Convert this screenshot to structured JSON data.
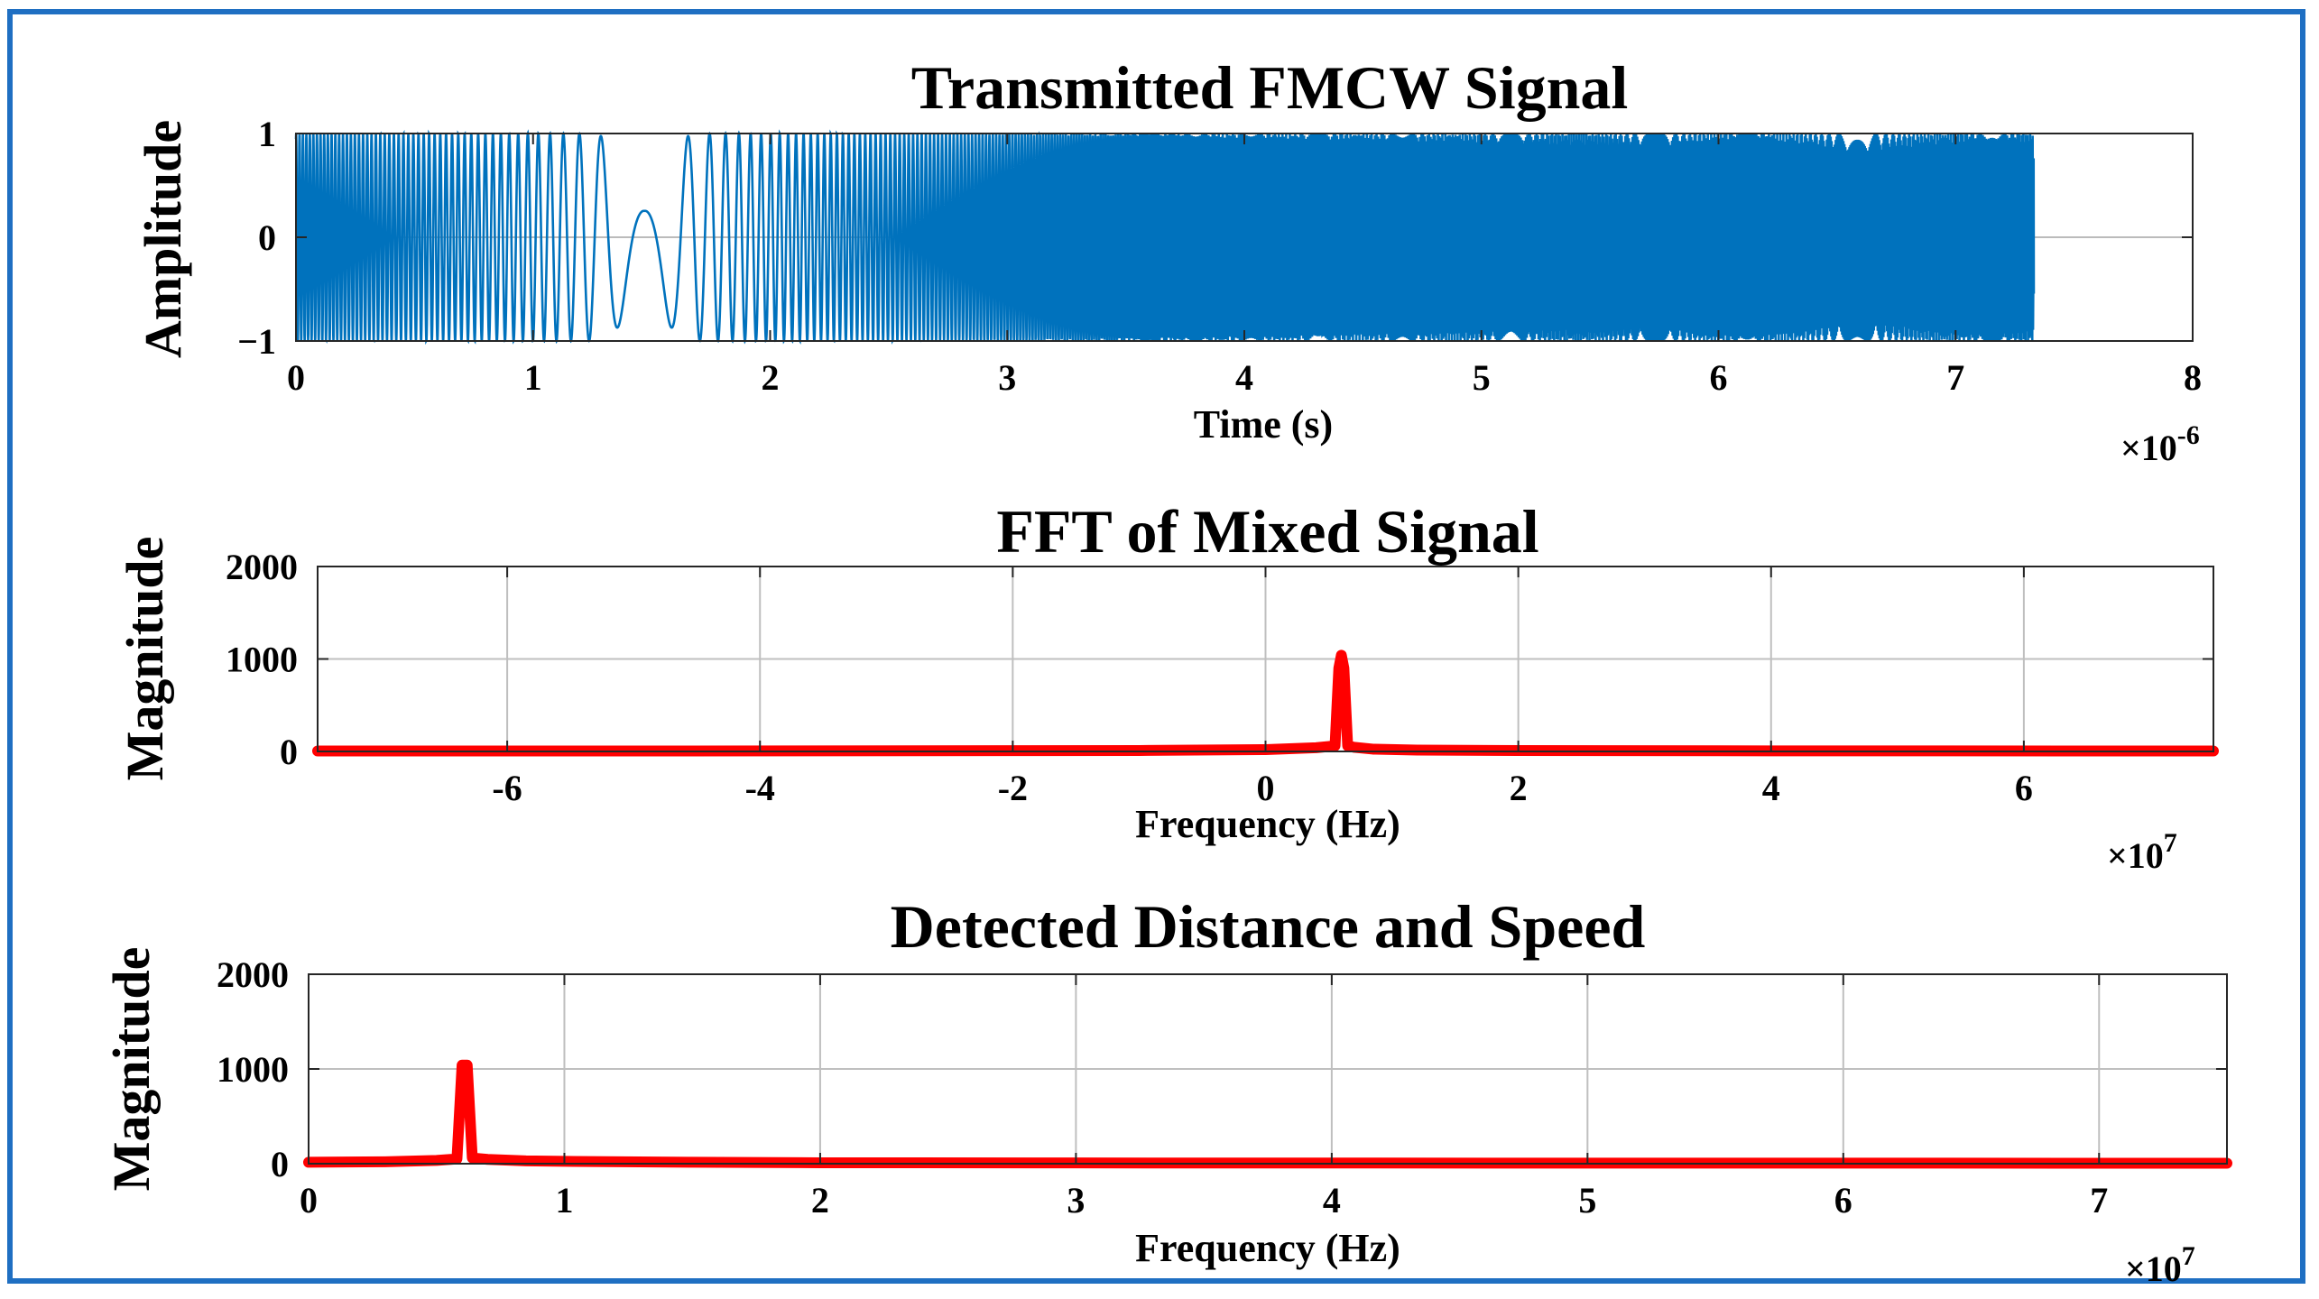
{
  "colors": {
    "frame": "#1f6fc2",
    "signal": "#0072bd",
    "spectrum": "#ff0000",
    "grid": "#bfbfbf"
  },
  "chart_data": [
    {
      "id": "p1",
      "type": "line",
      "title": "Transmitted FMCW Signal",
      "xlabel": "Time (s)",
      "ylabel": "Amplitude",
      "x_exponent": "×10",
      "x_exponent_power": "-6",
      "xlim": [
        0,
        8
      ],
      "ylim": [
        -1,
        1
      ],
      "xticks": [
        0,
        1,
        2,
        3,
        4,
        5,
        6,
        7,
        8
      ],
      "yticks": [
        -1,
        0,
        1
      ],
      "xtick_labels": [
        "0",
        "1",
        "2",
        "3",
        "4",
        "5",
        "6",
        "7",
        "8"
      ],
      "ytick_labels": [
        "−1",
        "0",
        "1"
      ],
      "grid": false,
      "series": [
        {
          "color": "#0072bd",
          "signal": "chirp",
          "x_start": 0,
          "x_end": 7.33,
          "amplitude": 1
        }
      ]
    },
    {
      "id": "p2",
      "type": "line",
      "title": "FFT of Mixed Signal",
      "xlabel": "Frequency (Hz)",
      "ylabel": "Magnitude",
      "x_exponent": "×10",
      "x_exponent_power": "7",
      "xlim": [
        -7.5,
        7.5
      ],
      "ylim": [
        0,
        2000
      ],
      "xticks": [
        -6,
        -4,
        -2,
        0,
        2,
        4,
        6
      ],
      "yticks": [
        0,
        1000,
        2000
      ],
      "xtick_labels": [
        "-6",
        "-4",
        "-2",
        "0",
        "2",
        "4",
        "6"
      ],
      "ytick_labels": [
        "0",
        "1000",
        "2000"
      ],
      "grid": true,
      "series": [
        {
          "color": "#ff0000",
          "x": [
            -7.5,
            -5,
            -2,
            -1,
            0,
            0.4,
            0.55,
            0.58,
            0.6,
            0.62,
            0.65,
            0.7,
            0.85,
            1.2,
            2,
            4,
            7.5
          ],
          "y": [
            5,
            5,
            8,
            10,
            20,
            40,
            60,
            900,
            1040,
            900,
            60,
            45,
            25,
            15,
            10,
            6,
            5
          ]
        }
      ]
    },
    {
      "id": "p3",
      "type": "line",
      "title": "Detected Distance and Speed",
      "xlabel": "Frequency (Hz)",
      "ylabel": "Magnitude",
      "x_exponent": "×10",
      "x_exponent_power": "7",
      "xlim": [
        0,
        7.5
      ],
      "ylim": [
        0,
        2000
      ],
      "xticks": [
        0,
        1,
        2,
        3,
        4,
        5,
        6,
        7
      ],
      "yticks": [
        0,
        1000,
        2000
      ],
      "xtick_labels": [
        "0",
        "1",
        "2",
        "3",
        "4",
        "5",
        "6",
        "7"
      ],
      "ytick_labels": [
        "0",
        "1000",
        "2000"
      ],
      "grid": true,
      "series": [
        {
          "color": "#ff0000",
          "x": [
            0,
            0.3,
            0.5,
            0.58,
            0.6,
            0.62,
            0.64,
            0.7,
            0.85,
            1.0,
            1.5,
            2,
            3,
            5,
            7.5
          ],
          "y": [
            15,
            20,
            35,
            50,
            1040,
            1040,
            60,
            45,
            30,
            25,
            15,
            10,
            8,
            6,
            5
          ]
        }
      ]
    }
  ]
}
